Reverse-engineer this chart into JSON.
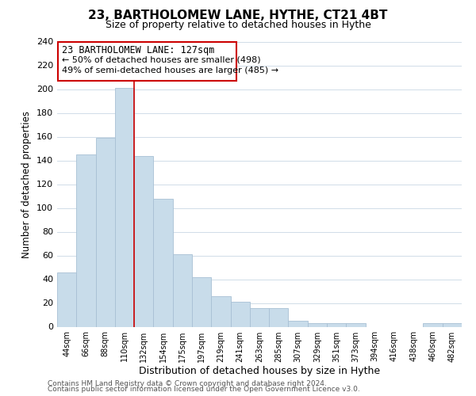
{
  "title": "23, BARTHOLOMEW LANE, HYTHE, CT21 4BT",
  "subtitle": "Size of property relative to detached houses in Hythe",
  "xlabel": "Distribution of detached houses by size in Hythe",
  "ylabel": "Number of detached properties",
  "bar_color": "#c8dcea",
  "bar_edge_color": "#a8c0d4",
  "categories": [
    "44sqm",
    "66sqm",
    "88sqm",
    "110sqm",
    "132sqm",
    "154sqm",
    "175sqm",
    "197sqm",
    "219sqm",
    "241sqm",
    "263sqm",
    "285sqm",
    "307sqm",
    "329sqm",
    "351sqm",
    "373sqm",
    "394sqm",
    "416sqm",
    "438sqm",
    "460sqm",
    "482sqm"
  ],
  "values": [
    46,
    145,
    159,
    201,
    144,
    108,
    61,
    42,
    26,
    21,
    16,
    16,
    5,
    3,
    3,
    3,
    0,
    0,
    0,
    3,
    3
  ],
  "ylim": [
    0,
    240
  ],
  "yticks": [
    0,
    20,
    40,
    60,
    80,
    100,
    120,
    140,
    160,
    180,
    200,
    220,
    240
  ],
  "red_line_index": 4,
  "property_line_label": "23 BARTHOLOMEW LANE: 127sqm",
  "annotation_line1": "← 50% of detached houses are smaller (498)",
  "annotation_line2": "49% of semi-detached houses are larger (485) →",
  "box_color": "#ffffff",
  "box_edge_color": "#cc0000",
  "footer1": "Contains HM Land Registry data © Crown copyright and database right 2024.",
  "footer2": "Contains public sector information licensed under the Open Government Licence v3.0.",
  "background_color": "#ffffff",
  "grid_color": "#d0dce8"
}
